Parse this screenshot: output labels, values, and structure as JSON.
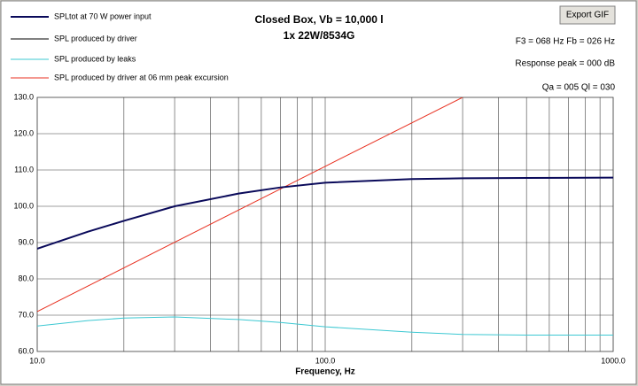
{
  "toolbar": {
    "button": "Export GIF"
  },
  "chart_data": {
    "type": "line",
    "title": "Closed Box, Vb = 10,000 l",
    "subtitle": "1x 22W/8534G",
    "annotations": [
      "F3 = 068 Hz  Fb = 026 Hz",
      "Response peak = 000 dB",
      "Qa = 005   Ql = 030"
    ],
    "x_label": "Frequency, Hz",
    "x_log": true,
    "xlim": [
      10,
      1000
    ],
    "xticks": [
      {
        "value": 10,
        "label": "10.0"
      },
      {
        "value": 100,
        "label": "100.0"
      },
      {
        "value": 1000,
        "label": "1000.0"
      }
    ],
    "xgrid": [
      20,
      30,
      40,
      50,
      60,
      70,
      80,
      90,
      200,
      300,
      400,
      500,
      600,
      700,
      800,
      900
    ],
    "ylim": [
      60,
      130
    ],
    "yticks": [
      {
        "value": 60,
        "label": "60.0"
      },
      {
        "value": 70,
        "label": "70.0"
      },
      {
        "value": 80,
        "label": "80.0"
      },
      {
        "value": 90,
        "label": "90.0"
      },
      {
        "value": 100,
        "label": "100.0"
      },
      {
        "value": 110,
        "label": "110.0"
      },
      {
        "value": 120,
        "label": "120.0"
      },
      {
        "value": 130,
        "label": "130.0"
      }
    ],
    "grid": true,
    "series": [
      {
        "name": "SPLtot at 70 W power input",
        "color": "#0a0a5a",
        "width": 2,
        "x": [
          10,
          15,
          20,
          30,
          50,
          70,
          100,
          200,
          300,
          500,
          1000
        ],
        "values": [
          88.3,
          93,
          96,
          100,
          103.5,
          105.2,
          106.5,
          107.5,
          107.7,
          107.8,
          107.9
        ]
      },
      {
        "name": "SPL produced by driver",
        "color": "#000000",
        "width": 1,
        "x": [
          10,
          15,
          20,
          30,
          50,
          70,
          100,
          200,
          300,
          500,
          1000
        ],
        "values": [
          88.3,
          93,
          96,
          100,
          103.5,
          105.2,
          106.5,
          107.5,
          107.7,
          107.8,
          107.9
        ]
      },
      {
        "name": "SPL produced by leaks",
        "color": "#3cc8d2",
        "width": 1,
        "x": [
          10,
          15,
          20,
          30,
          50,
          70,
          100,
          200,
          300,
          500,
          1000
        ],
        "values": [
          67,
          68.5,
          69.2,
          69.5,
          68.8,
          68,
          66.8,
          65.3,
          64.7,
          64.5,
          64.5
        ]
      },
      {
        "name": "SPL produced by driver at 06 mm peak excursion",
        "color": "#e83020",
        "width": 1,
        "x": [
          10,
          100,
          300
        ],
        "values": [
          71,
          111,
          130
        ]
      }
    ]
  }
}
